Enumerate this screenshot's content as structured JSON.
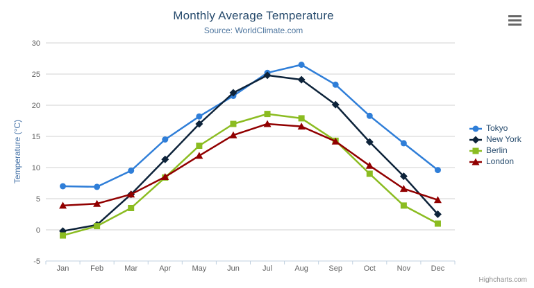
{
  "header": {
    "title": "Monthly Average Temperature",
    "subtitle": "Source: WorldClimate.com"
  },
  "credits": "Highcharts.com",
  "chart_data": {
    "type": "line",
    "title": "Monthly Average Temperature",
    "subtitle": "Source: WorldClimate.com",
    "categories": [
      "Jan",
      "Feb",
      "Mar",
      "Apr",
      "May",
      "Jun",
      "Jul",
      "Aug",
      "Sep",
      "Oct",
      "Nov",
      "Dec"
    ],
    "xlabel": "",
    "ylabel": "Temperature (°C)",
    "ylim": [
      -5,
      30
    ],
    "ytick_interval": 5,
    "grid": true,
    "legend_position": "right",
    "series": [
      {
        "name": "Tokyo",
        "color": "#2f7ed8",
        "marker": "circle",
        "values": [
          7.0,
          6.9,
          9.5,
          14.5,
          18.2,
          21.5,
          25.2,
          26.5,
          23.3,
          18.3,
          13.9,
          9.6
        ]
      },
      {
        "name": "New York",
        "color": "#0d233a",
        "marker": "diamond",
        "values": [
          -0.2,
          0.8,
          5.7,
          11.3,
          17.0,
          22.0,
          24.8,
          24.1,
          20.1,
          14.1,
          8.6,
          2.5
        ]
      },
      {
        "name": "Berlin",
        "color": "#8bbc21",
        "marker": "square",
        "values": [
          -0.9,
          0.6,
          3.5,
          8.4,
          13.5,
          17.0,
          18.6,
          17.9,
          14.3,
          9.0,
          3.9,
          1.0
        ]
      },
      {
        "name": "London",
        "color": "#910000",
        "marker": "triangle",
        "values": [
          3.9,
          4.2,
          5.7,
          8.5,
          11.9,
          15.2,
          17.0,
          16.6,
          14.2,
          10.3,
          6.6,
          4.8
        ]
      }
    ],
    "axis_colors": {
      "grid": "#d0d0d0",
      "axis_line": "#c0d0e0",
      "labels": "#606060"
    }
  }
}
